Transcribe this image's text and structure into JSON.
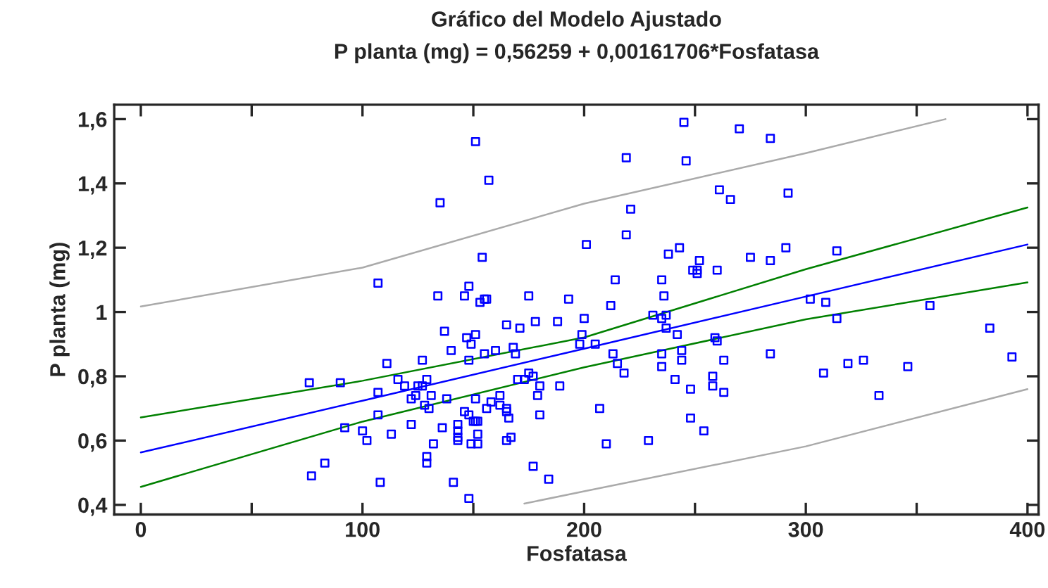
{
  "chart_data": {
    "type": "scatter",
    "title": "Gráfico del Modelo Ajustado",
    "subtitle": "P planta (mg) = 0,56259 + 0,00161706*Fosfatasa",
    "xlabel": "Fosfatasa",
    "ylabel": "P planta (mg)",
    "xlim": [
      -12,
      405
    ],
    "ylim": [
      0.37,
      1.645
    ],
    "xticks": [
      0,
      {
        "value": 50,
        "label": null
      },
      100,
      {
        "value": 150,
        "label": null
      },
      200,
      {
        "value": 250,
        "label": null
      },
      300,
      {
        "value": 350,
        "label": null
      },
      400
    ],
    "yticks": [
      {
        "value": 0.4,
        "label": "0,4"
      },
      {
        "value": 0.6,
        "label": "0,6"
      },
      {
        "value": 0.8,
        "label": "0,8"
      },
      1,
      {
        "value": 1.2,
        "label": "1,2"
      },
      {
        "value": 1.4,
        "label": "1,4"
      },
      {
        "value": 1.6,
        "label": "1,6"
      }
    ],
    "grid": false,
    "series": [
      {
        "color": "#0000ff",
        "marker": "square",
        "x": [
          76,
          77,
          83,
          90,
          151,
          157,
          135,
          154,
          107,
          134,
          146,
          148,
          155,
          153,
          156,
          175,
          137,
          147,
          151,
          149,
          140,
          127,
          111,
          148,
          155,
          160,
          165,
          171,
          178,
          188,
          168,
          169,
          175,
          173,
          177,
          170,
          180,
          189,
          179,
          180,
          107,
          116,
          119,
          125,
          127,
          129,
          122,
          124,
          131,
          138,
          128,
          130,
          107,
          151,
          158,
          162,
          162,
          165,
          165,
          156,
          146,
          148,
          150,
          151,
          152,
          166,
          92,
          122,
          143,
          143,
          136,
          100,
          102,
          113,
          143,
          143,
          152,
          149,
          152,
          132,
          167,
          165,
          129,
          129,
          108,
          141,
          148,
          177,
          184,
          245,
          270,
          284,
          219,
          246,
          261,
          266,
          292,
          221,
          219,
          201,
          243,
          238,
          291,
          275,
          284,
          252,
          249,
          251,
          251,
          260,
          214,
          235,
          236,
          193,
          212,
          200,
          199,
          198,
          205,
          231,
          235,
          237,
          237,
          242,
          259,
          260,
          213,
          215,
          218,
          235,
          244,
          244,
          263,
          235,
          284,
          241,
          258,
          258,
          248,
          263,
          207,
          248,
          254,
          210,
          229,
          314,
          302,
          309,
          314,
          356,
          383,
          393,
          308,
          319,
          326,
          346,
          333
        ],
        "values": [
          0.78,
          0.49,
          0.53,
          0.78,
          1.53,
          1.41,
          1.34,
          1.17,
          1.09,
          1.05,
          1.05,
          1.08,
          1.04,
          1.03,
          1.04,
          1.05,
          0.94,
          0.92,
          0.93,
          0.9,
          0.88,
          0.85,
          0.84,
          0.85,
          0.87,
          0.88,
          0.96,
          0.95,
          0.97,
          0.97,
          0.89,
          0.87,
          0.81,
          0.79,
          0.8,
          0.79,
          0.77,
          0.77,
          0.74,
          0.68,
          0.75,
          0.79,
          0.77,
          0.77,
          0.77,
          0.79,
          0.73,
          0.74,
          0.74,
          0.73,
          0.71,
          0.7,
          0.68,
          0.73,
          0.72,
          0.74,
          0.71,
          0.7,
          0.69,
          0.7,
          0.69,
          0.68,
          0.66,
          0.66,
          0.66,
          0.67,
          0.64,
          0.65,
          0.65,
          0.63,
          0.64,
          0.63,
          0.6,
          0.62,
          0.61,
          0.6,
          0.62,
          0.59,
          0.59,
          0.59,
          0.61,
          0.6,
          0.55,
          0.53,
          0.47,
          0.47,
          0.42,
          0.52,
          0.48,
          1.59,
          1.57,
          1.54,
          1.48,
          1.47,
          1.38,
          1.35,
          1.37,
          1.32,
          1.24,
          1.21,
          1.2,
          1.18,
          1.2,
          1.17,
          1.16,
          1.16,
          1.13,
          1.13,
          1.12,
          1.13,
          1.1,
          1.1,
          1.05,
          1.04,
          1.02,
          0.98,
          0.93,
          0.9,
          0.9,
          0.99,
          0.98,
          0.99,
          0.95,
          0.93,
          0.92,
          0.91,
          0.87,
          0.84,
          0.81,
          0.87,
          0.88,
          0.85,
          0.85,
          0.83,
          0.87,
          0.79,
          0.8,
          0.77,
          0.76,
          0.75,
          0.7,
          0.67,
          0.63,
          0.59,
          0.6,
          1.19,
          1.04,
          1.03,
          0.98,
          1.02,
          0.95,
          0.86,
          0.81,
          0.84,
          0.85,
          0.83,
          0.74
        ]
      },
      {
        "type": "line",
        "color": "#0000ff",
        "x": [
          0,
          100,
          200,
          300,
          400
        ],
        "values": [
          0.563,
          0.724,
          0.886,
          1.048,
          1.21
        ]
      },
      {
        "type": "line",
        "color": "#008000",
        "x": [
          0,
          100,
          200,
          300,
          400
        ],
        "values": [
          0.672,
          0.786,
          0.921,
          1.133,
          1.325
        ]
      },
      {
        "type": "line",
        "color": "#008000",
        "x": [
          0,
          100,
          200,
          300,
          400
        ],
        "values": [
          0.456,
          0.659,
          0.828,
          0.977,
          1.092
        ]
      },
      {
        "type": "line",
        "color": "#aaaaaa",
        "x": [
          0,
          100,
          200,
          300,
          363
        ],
        "values": [
          1.017,
          1.138,
          1.337,
          1.494,
          1.6
        ]
      },
      {
        "type": "line",
        "color": "#aaaaaa",
        "x": [
          173,
          200,
          300,
          400
        ],
        "values": [
          0.404,
          0.442,
          0.582,
          0.76
        ]
      }
    ]
  }
}
